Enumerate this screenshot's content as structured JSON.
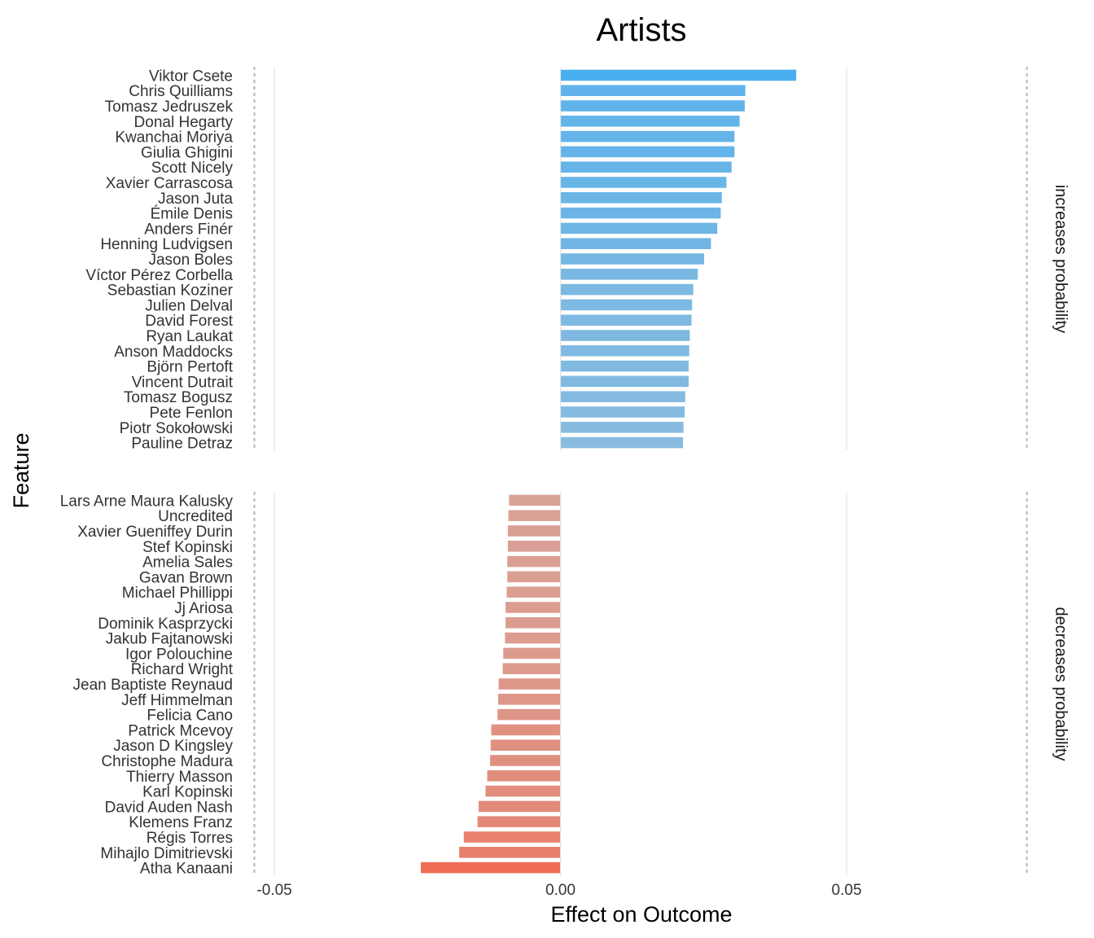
{
  "chart_data": {
    "type": "bar",
    "orientation": "horizontal",
    "title": "Artists",
    "xlabel": "Effect on Outcome",
    "ylabel": "Feature",
    "xlim": [
      -0.053,
      0.082
    ],
    "xticks": [
      -0.05,
      0.0,
      0.05
    ],
    "xtick_labels": [
      "-0.05",
      "0.00",
      "0.05"
    ],
    "reference_lines": [
      -0.0535,
      0.0815
    ],
    "grid": "vertical-major",
    "panels": [
      {
        "strip_label": "increases probability",
        "color_strong": "#4aaff0",
        "color_weak": "#88bbdf",
        "categories": [
          "Viktor Csete",
          "Chris Quilliams",
          "Tomasz Jedruszek",
          "Donal Hegarty",
          "Kwanchai Moriya",
          "Giulia Ghigini",
          "Scott Nicely",
          "Xavier Carrascosa",
          "Jason Juta",
          "Émile Denis",
          "Anders Finér",
          "Henning Ludvigsen",
          "Jason Boles",
          "Víctor Pérez Corbella",
          "Sebastian Koziner",
          "Julien Delval",
          "David Forest",
          "Ryan Laukat",
          "Anson Maddocks",
          "Björn Pertoft",
          "Vincent Dutrait",
          "Tomasz Bogusz",
          "Pete Fenlon",
          "Piotr Sokołowski",
          "Pauline Detraz"
        ],
        "values": [
          0.0412,
          0.0323,
          0.0322,
          0.0313,
          0.0304,
          0.0304,
          0.0299,
          0.029,
          0.0282,
          0.028,
          0.0274,
          0.0263,
          0.0251,
          0.024,
          0.0232,
          0.023,
          0.0229,
          0.0226,
          0.0225,
          0.0224,
          0.0224,
          0.0218,
          0.0217,
          0.0215,
          0.0214
        ]
      },
      {
        "strip_label": "decreases probability",
        "color_strong": "#ef6d55",
        "color_weak": "#d9a297",
        "categories": [
          "Lars Arne Maura Kalusky",
          "Uncredited",
          "Xavier Gueniffey Durin",
          "Stef Kopinski",
          "Amelia Sales",
          "Gavan Brown",
          "Michael Phillippi",
          "Jj Ariosa",
          "Dominik Kasprzycki",
          "Jakub Fajtanowski",
          "Igor Polouchine",
          "Richard Wright",
          "Jean Baptiste Reynaud",
          "Jeff Himmelman",
          "Felicia Cano",
          "Patrick Mcevoy",
          "Jason D Kingsley",
          "Christophe Madura",
          "Thierry Masson",
          "Karl Kopinski",
          "David Auden Nash",
          "Klemens Franz",
          "Régis Torres",
          "Mihajlo Dimitrievski",
          "Atha Kanaani"
        ],
        "values": [
          -0.009,
          -0.0091,
          -0.0092,
          -0.0092,
          -0.0093,
          -0.0093,
          -0.0094,
          -0.0096,
          -0.0096,
          -0.0097,
          -0.01,
          -0.0101,
          -0.0108,
          -0.0109,
          -0.011,
          -0.0121,
          -0.0122,
          -0.0123,
          -0.0128,
          -0.0131,
          -0.0143,
          -0.0145,
          -0.0169,
          -0.0177,
          -0.0244
        ]
      }
    ]
  }
}
